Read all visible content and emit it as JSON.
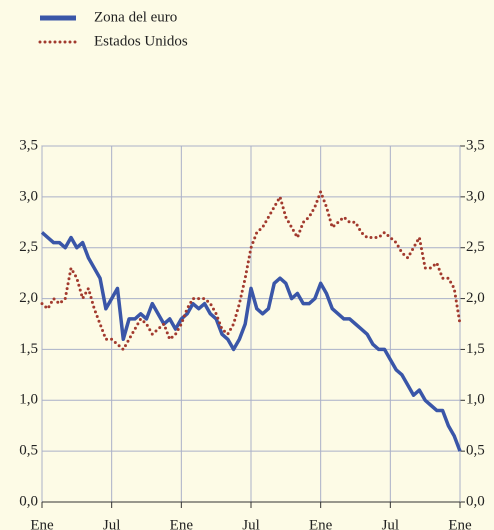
{
  "chart_data": {
    "type": "line",
    "x": [
      0,
      0.5,
      1,
      1.5,
      2,
      2.5,
      3,
      3.5,
      4,
      4.5,
      5,
      5.5,
      6,
      6.5,
      7,
      7.5,
      8,
      8.5,
      9,
      9.5,
      10,
      10.5,
      11,
      11.5,
      12,
      12.5,
      13,
      13.5,
      14,
      14.5,
      15,
      15.5,
      16,
      16.5,
      17,
      17.5,
      18,
      18.5,
      19,
      19.5,
      20,
      20.5,
      21,
      21.5,
      22,
      22.5,
      23,
      23.5,
      24,
      24.5,
      25,
      25.5,
      26,
      26.5,
      27,
      27.5,
      28,
      28.5,
      29,
      29.5,
      30,
      30.5,
      31,
      31.5,
      32,
      32.5,
      33,
      33.5,
      34,
      34.5,
      35,
      35.5,
      36
    ],
    "xlim": [
      0,
      36
    ],
    "xticks": [
      {
        "value": 0,
        "label": "Ene"
      },
      {
        "value": 6,
        "label": "Jul"
      },
      {
        "value": 12,
        "label": "Ene"
      },
      {
        "value": 18,
        "label": "Jul"
      },
      {
        "value": 24,
        "label": "Ene"
      },
      {
        "value": 30,
        "label": "Jul"
      },
      {
        "value": 36,
        "label": "Ene"
      }
    ],
    "ylim": [
      0,
      3.5
    ],
    "yticks": [
      {
        "value": 0,
        "label": "0,0"
      },
      {
        "value": 0.5,
        "label": "0,5"
      },
      {
        "value": 1,
        "label": "1,0"
      },
      {
        "value": 1.5,
        "label": "1,5"
      },
      {
        "value": 2,
        "label": "2,0"
      },
      {
        "value": 2.5,
        "label": "2,5"
      },
      {
        "value": 3,
        "label": "3,0"
      },
      {
        "value": 3.5,
        "label": "3,5"
      }
    ],
    "y2lim": [
      0,
      3.5
    ],
    "y2ticks": [
      {
        "value": 0,
        "label": "0,0"
      },
      {
        "value": 0.5,
        "label": "0,5"
      },
      {
        "value": 1,
        "label": "1,0"
      },
      {
        "value": 1.5,
        "label": "1,5"
      },
      {
        "value": 2,
        "label": "2,0"
      },
      {
        "value": 2.5,
        "label": "2,5"
      },
      {
        "value": 3,
        "label": "3,0"
      },
      {
        "value": 3.5,
        "label": "3,5"
      }
    ],
    "grid": true,
    "series": [
      {
        "name": "Zona del euro",
        "color": "#3a56a8",
        "style": "solid",
        "values": [
          2.65,
          2.6,
          2.55,
          2.55,
          2.5,
          2.6,
          2.5,
          2.55,
          2.4,
          2.3,
          2.2,
          1.9,
          2.0,
          2.1,
          1.6,
          1.8,
          1.8,
          1.85,
          1.8,
          1.95,
          1.85,
          1.75,
          1.8,
          1.7,
          1.8,
          1.85,
          1.95,
          1.9,
          1.95,
          1.85,
          1.8,
          1.65,
          1.6,
          1.5,
          1.6,
          1.75,
          2.1,
          1.9,
          1.85,
          1.9,
          2.15,
          2.2,
          2.15,
          2.0,
          2.05,
          1.95,
          1.95,
          2.0,
          2.15,
          2.05,
          1.9,
          1.85,
          1.8,
          1.8,
          1.75,
          1.7,
          1.65,
          1.55,
          1.5,
          1.5,
          1.4,
          1.3,
          1.25,
          1.15,
          1.05,
          1.1,
          1.0,
          0.95,
          0.9,
          0.9,
          0.75,
          0.65,
          0.5
        ]
      },
      {
        "name": "Estados Unidos",
        "color": "#a23a2e",
        "style": "dotted",
        "values": [
          1.95,
          1.9,
          2.0,
          1.95,
          2.0,
          2.3,
          2.2,
          2.0,
          2.1,
          1.9,
          1.75,
          1.6,
          1.6,
          1.55,
          1.5,
          1.6,
          1.7,
          1.8,
          1.75,
          1.65,
          1.7,
          1.75,
          1.6,
          1.65,
          1.75,
          1.9,
          2.0,
          2.0,
          2.0,
          1.95,
          1.85,
          1.7,
          1.65,
          1.75,
          1.95,
          2.2,
          2.5,
          2.65,
          2.7,
          2.8,
          2.9,
          3.0,
          2.8,
          2.7,
          2.6,
          2.75,
          2.8,
          2.9,
          3.05,
          2.9,
          2.7,
          2.75,
          2.8,
          2.75,
          2.75,
          2.65,
          2.6,
          2.6,
          2.6,
          2.65,
          2.6,
          2.55,
          2.45,
          2.4,
          2.5,
          2.6,
          2.3,
          2.3,
          2.35,
          2.2,
          2.2,
          2.1,
          1.75
        ]
      }
    ]
  }
}
